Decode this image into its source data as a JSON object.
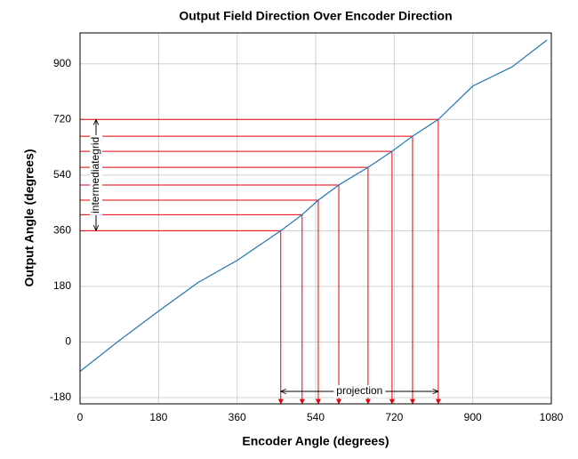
{
  "chart_data": {
    "type": "line",
    "title": "Output Field Direction Over Encoder Direction",
    "xlabel": "Encoder Angle (degrees)",
    "ylabel": "Output Angle (degrees)",
    "x": [
      0,
      90,
      180,
      270,
      360,
      460,
      509,
      546,
      593,
      660,
      715,
      762,
      821,
      900,
      990,
      1070
    ],
    "values": [
      -95,
      5,
      100,
      192,
      264,
      360,
      412,
      459,
      508,
      565,
      617,
      666,
      720,
      828,
      890,
      977
    ],
    "color": "#1f77b4",
    "xlim": [
      0,
      1080
    ],
    "xticks": [
      0,
      180,
      360,
      540,
      720,
      900,
      1080
    ],
    "ylim": [
      -200,
      1000
    ],
    "yticks": [
      -180,
      0,
      180,
      360,
      540,
      720,
      900
    ],
    "grid": true,
    "projections": {
      "color": "#e8000b",
      "x": [
        460,
        509,
        546,
        593,
        660,
        715,
        762,
        821
      ],
      "y": [
        360,
        412,
        459,
        508,
        565,
        617,
        666,
        720
      ]
    },
    "annotations": [
      "intermediategrid",
      "projection"
    ]
  }
}
